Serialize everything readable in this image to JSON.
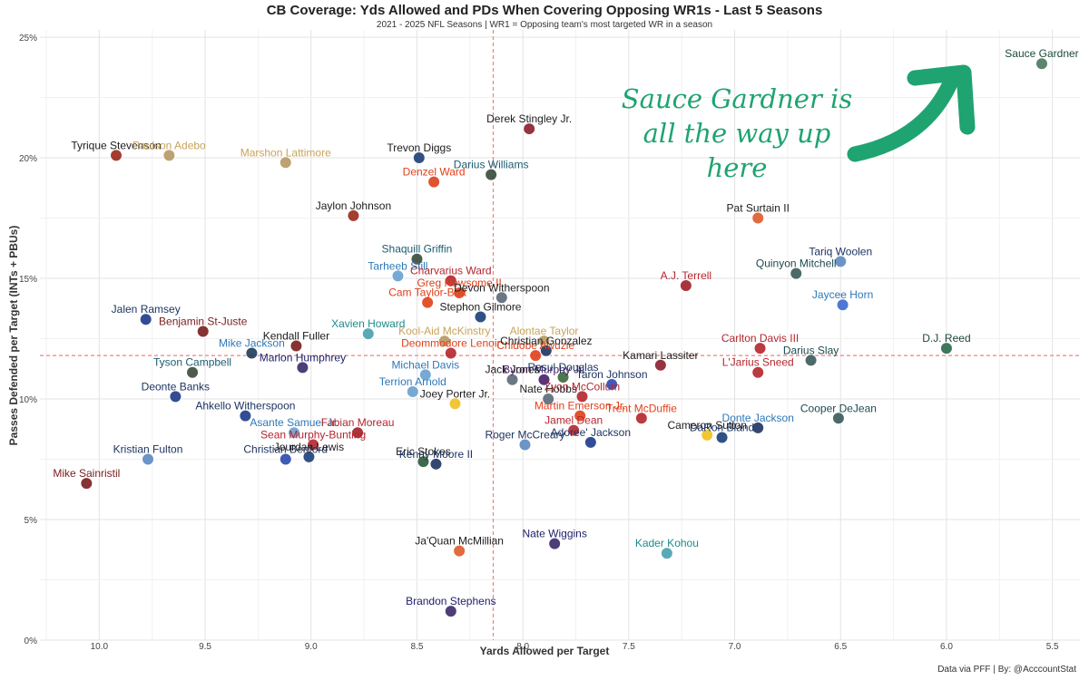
{
  "title": "CB Coverage: Yds Allowed and PDs When Covering Opposing WR1s - Last 5 Seasons",
  "subtitle": "2021 - 2025 NFL Seasons | WR1 = Opposing team's most targeted WR in a season",
  "annotation": "Sauce Gardner is all the way up here",
  "credit": "Data via PFF | By: @AcccountStat",
  "chart_data": {
    "type": "scatter",
    "title": "CB Coverage: Yds Allowed and PDs When Covering Opposing WR1s - Last 5 Seasons",
    "subtitle": "2021 - 2025 NFL Seasons | WR1 = Opposing team's most targeted WR in a season",
    "xlabel": "Yards Allowed per Target",
    "ylabel": "Passes Defended per Target (INTs + PBUs)",
    "x_reversed": true,
    "xlim": [
      10.28,
      5.37
    ],
    "ylim": [
      0,
      25.3
    ],
    "x_ticks": [
      10.0,
      9.5,
      9.0,
      8.5,
      8.0,
      7.5,
      7.0,
      6.5,
      6.0,
      5.5
    ],
    "x_tick_labels": [
      "10.0",
      "9.5",
      "9.0",
      "8.5",
      "8.0",
      "7.5",
      "7.0",
      "6.5",
      "6.0",
      "5.5"
    ],
    "y_ticks": [
      0,
      5,
      10,
      15,
      20,
      25
    ],
    "y_tick_labels": [
      "0%",
      "5%",
      "10%",
      "15%",
      "20%",
      "25%"
    ],
    "grid": true,
    "reference_lines": {
      "x": 8.14,
      "y": 11.8,
      "color": "#f08080"
    },
    "points": [
      {
        "name": "Sauce Gardner",
        "x": 5.55,
        "y": 23.9,
        "color": "#1d4a3a",
        "marker": "#4a7a5a"
      },
      {
        "name": "Tyrique Stevenson",
        "x": 9.92,
        "y": 20.1,
        "color": "#1c1c1c",
        "marker": "#9a2a1a"
      },
      {
        "name": "Paulson Adebo",
        "x": 9.67,
        "y": 20.1,
        "color": "#c9a35a",
        "marker": "#b79a62"
      },
      {
        "name": "Marshon Lattimore",
        "x": 9.12,
        "y": 19.8,
        "color": "#c9a35a",
        "marker": "#b79a62"
      },
      {
        "name": "Trevon Diggs",
        "x": 8.49,
        "y": 20.0,
        "color": "#1c1c1c",
        "marker": "#1b3f7a"
      },
      {
        "name": "Derek Stingley Jr.",
        "x": 7.97,
        "y": 21.2,
        "color": "#1c1c1c",
        "marker": "#8a1f2d"
      },
      {
        "name": "Darius Williams",
        "x": 8.15,
        "y": 19.3,
        "color": "#1d5c72",
        "marker": "#3a4a3a"
      },
      {
        "name": "Denzel Ward",
        "x": 8.42,
        "y": 19.0,
        "color": "#e0401a",
        "marker": "#e0401a"
      },
      {
        "name": "Jaylon Johnson",
        "x": 8.8,
        "y": 17.6,
        "color": "#1c1c1c",
        "marker": "#9a2a1a"
      },
      {
        "name": "Pat Surtain II",
        "x": 6.89,
        "y": 17.5,
        "color": "#1c1c1c",
        "marker": "#e05a2a"
      },
      {
        "name": "Shaquill Griffin",
        "x": 8.5,
        "y": 15.8,
        "color": "#1d5c72",
        "marker": "#3a4a3a"
      },
      {
        "name": "Tariq Woolen",
        "x": 6.5,
        "y": 15.7,
        "color": "#1d3461",
        "marker": "#5a8ac0"
      },
      {
        "name": "Tarheeb Still",
        "x": 8.59,
        "y": 15.1,
        "color": "#2e78b8",
        "marker": "#6aa0d0"
      },
      {
        "name": "Charvarius Ward",
        "x": 8.34,
        "y": 14.9,
        "color": "#b4262d",
        "marker": "#b4262d"
      },
      {
        "name": "A.J. Terrell",
        "x": 7.23,
        "y": 14.7,
        "color": "#b4262d",
        "marker": "#a01f2a"
      },
      {
        "name": "Quinyon Mitchell",
        "x": 6.71,
        "y": 15.2,
        "color": "#1d4a4f",
        "marker": "#3a5a5a"
      },
      {
        "name": "Greg Newsome II",
        "x": 8.3,
        "y": 14.4,
        "color": "#e0401a",
        "marker": "#e0401a"
      },
      {
        "name": "Cam Taylor-Britt",
        "x": 8.45,
        "y": 14.0,
        "color": "#e0401a",
        "marker": "#e0401a"
      },
      {
        "name": "Devon Witherspoon",
        "x": 8.1,
        "y": 14.2,
        "color": "#1c1c1c",
        "marker": "#5a6a7a"
      },
      {
        "name": "Jaycee Horn",
        "x": 6.49,
        "y": 13.9,
        "color": "#2e78b8",
        "marker": "#3a6ad0"
      },
      {
        "name": "Jalen Ramsey",
        "x": 9.78,
        "y": 13.3,
        "color": "#1d3461",
        "marker": "#1d3a8a"
      },
      {
        "name": "Stephon Gilmore",
        "x": 8.2,
        "y": 13.4,
        "color": "#1c1c1c",
        "marker": "#1b3f7a"
      },
      {
        "name": "Xavien Howard",
        "x": 8.73,
        "y": 12.7,
        "color": "#1d8a8a",
        "marker": "#4aa0b0"
      },
      {
        "name": "Benjamin St-Juste",
        "x": 9.51,
        "y": 12.8,
        "color": "#7a1d1d",
        "marker": "#7a1d1d"
      },
      {
        "name": "Kool-Aid McKinstry",
        "x": 8.37,
        "y": 12.4,
        "color": "#c9a35a",
        "marker": "#b79a62"
      },
      {
        "name": "Alontae Taylor",
        "x": 7.9,
        "y": 12.4,
        "color": "#c9a35a",
        "marker": "#b79a62"
      },
      {
        "name": "Chidobe Awuzie",
        "x": 7.94,
        "y": 11.8,
        "color": "#e0401a",
        "marker": "#e0401a"
      },
      {
        "name": "Christian Gonzalez",
        "x": 7.89,
        "y": 12.0,
        "color": "#1c1c1c",
        "marker": "#1d3461"
      },
      {
        "name": "Carlton Davis III",
        "x": 6.88,
        "y": 12.1,
        "color": "#b4262d",
        "marker": "#b4262d"
      },
      {
        "name": "D.J. Reed",
        "x": 6.0,
        "y": 12.1,
        "color": "#1d4a3a",
        "marker": "#2a6a4a"
      },
      {
        "name": "Kendall Fuller",
        "x": 9.07,
        "y": 12.2,
        "color": "#1c1c1c",
        "marker": "#7a1d1d"
      },
      {
        "name": "Mike Jackson",
        "x": 9.28,
        "y": 11.9,
        "color": "#2e78b8",
        "marker": "#1d3a5a"
      },
      {
        "name": "Deommodore Lenoir",
        "x": 8.34,
        "y": 11.9,
        "color": "#e0401a",
        "marker": "#b4262d"
      },
      {
        "name": "Kamari Lassiter",
        "x": 7.35,
        "y": 11.4,
        "color": "#1c1c1c",
        "marker": "#8a1f2d"
      },
      {
        "name": "Darius Slay",
        "x": 6.64,
        "y": 11.6,
        "color": "#1d4a4f",
        "marker": "#3a5a5a"
      },
      {
        "name": "Tyson Campbell",
        "x": 9.56,
        "y": 11.1,
        "color": "#1d5c72",
        "marker": "#3a4a3a"
      },
      {
        "name": "Marlon Humphrey",
        "x": 9.04,
        "y": 11.3,
        "color": "#1d1d6a",
        "marker": "#3a2a6a"
      },
      {
        "name": "Michael Davis",
        "x": 8.46,
        "y": 11.0,
        "color": "#2e78b8",
        "marker": "#6aa0d0"
      },
      {
        "name": "Byron Murphy Jr.",
        "x": 7.9,
        "y": 10.8,
        "color": "#4a1d6a",
        "marker": "#4a1d6a"
      },
      {
        "name": "Rasul Douglas",
        "x": 7.81,
        "y": 10.9,
        "color": "#1d3461",
        "marker": "#3a6a3a"
      },
      {
        "name": "Jack Jones",
        "x": 8.05,
        "y": 10.8,
        "color": "#1c1c1c",
        "marker": "#5a6a7a"
      },
      {
        "name": "L'Jarius Sneed",
        "x": 6.89,
        "y": 11.1,
        "color": "#b4262d",
        "marker": "#b4262d"
      },
      {
        "name": "Taron Johnson",
        "x": 7.58,
        "y": 10.6,
        "color": "#1d3461",
        "marker": "#2a4ab0"
      },
      {
        "name": "Deonte Banks",
        "x": 9.64,
        "y": 10.1,
        "color": "#1d3461",
        "marker": "#1d3a8a"
      },
      {
        "name": "Terrion Arnold",
        "x": 8.52,
        "y": 10.3,
        "color": "#2e78b8",
        "marker": "#6aa0d0"
      },
      {
        "name": "Nate Hobbs",
        "x": 7.88,
        "y": 10.0,
        "color": "#1c1c1c",
        "marker": "#5a6a7a"
      },
      {
        "name": "Zyon McCollum",
        "x": 7.72,
        "y": 10.1,
        "color": "#b4262d",
        "marker": "#b4262d"
      },
      {
        "name": "Joey Porter Jr.",
        "x": 8.32,
        "y": 9.8,
        "color": "#1c1c1c",
        "marker": "#f0c020"
      },
      {
        "name": "Ahkello Witherspoon",
        "x": 9.31,
        "y": 9.3,
        "color": "#1d3461",
        "marker": "#1d3a8a"
      },
      {
        "name": "Martin Emerson Jr.",
        "x": 7.73,
        "y": 9.3,
        "color": "#e0401a",
        "marker": "#e0401a"
      },
      {
        "name": "Trent McDuffie",
        "x": 7.44,
        "y": 9.2,
        "color": "#e0401a",
        "marker": "#b4262d"
      },
      {
        "name": "Asante Samuel Jr.",
        "x": 9.08,
        "y": 8.6,
        "color": "#2e78b8",
        "marker": "#6aa0d0"
      },
      {
        "name": "Fabian Moreau",
        "x": 8.78,
        "y": 8.6,
        "color": "#b4262d",
        "marker": "#a01f2a"
      },
      {
        "name": "Jamel Dean",
        "x": 7.76,
        "y": 8.7,
        "color": "#b4262d",
        "marker": "#b4262d"
      },
      {
        "name": "Cameron Sutton",
        "x": 7.13,
        "y": 8.5,
        "color": "#1c1c1c",
        "marker": "#f0c020"
      },
      {
        "name": "Donte Jackson",
        "x": 6.89,
        "y": 8.8,
        "color": "#2e78b8",
        "marker": "#1d3461"
      },
      {
        "name": "Cooper DeJean",
        "x": 6.51,
        "y": 9.2,
        "color": "#1d4a4f",
        "marker": "#3a5a5a"
      },
      {
        "name": "DaRon Bland",
        "x": 7.06,
        "y": 8.4,
        "color": "#1d3461",
        "marker": "#1b3f7a"
      },
      {
        "name": "Roger McCreary",
        "x": 7.99,
        "y": 8.1,
        "color": "#1d3461",
        "marker": "#5a8ac0"
      },
      {
        "name": "Adoree' Jackson",
        "x": 7.68,
        "y": 8.2,
        "color": "#1d3461",
        "marker": "#1d3a8a"
      },
      {
        "name": "Kristian Fulton",
        "x": 9.77,
        "y": 7.5,
        "color": "#1d3461",
        "marker": "#5a8ac0"
      },
      {
        "name": "Sean Murphy-Bunting",
        "x": 8.99,
        "y": 8.1,
        "color": "#b4262d",
        "marker": "#b4262d"
      },
      {
        "name": "Christian Benford",
        "x": 9.12,
        "y": 7.5,
        "color": "#1d3461",
        "marker": "#2a4ab0"
      },
      {
        "name": "Jourdan Lewis",
        "x": 9.01,
        "y": 7.6,
        "color": "#1c1c1c",
        "marker": "#1b3f7a"
      },
      {
        "name": "Eric Stokes",
        "x": 8.47,
        "y": 7.4,
        "color": "#1c1c1c",
        "marker": "#2a5a3a"
      },
      {
        "name": "Kenny Moore II",
        "x": 8.41,
        "y": 7.3,
        "color": "#1d3461",
        "marker": "#1d3461"
      },
      {
        "name": "Mike Sainristil",
        "x": 10.06,
        "y": 6.5,
        "color": "#7a1d1d",
        "marker": "#7a1d1d"
      },
      {
        "name": "Ja'Quan McMillian",
        "x": 8.3,
        "y": 3.7,
        "color": "#1c1c1c",
        "marker": "#e05a2a"
      },
      {
        "name": "Nate Wiggins",
        "x": 7.85,
        "y": 4.0,
        "color": "#1d1d6a",
        "marker": "#3a2a6a"
      },
      {
        "name": "Kader Kohou",
        "x": 7.32,
        "y": 3.6,
        "color": "#1d8a8a",
        "marker": "#4aa0b0"
      },
      {
        "name": "Brandon Stephens",
        "x": 8.34,
        "y": 1.2,
        "color": "#1d1d6a",
        "marker": "#3a2a6a"
      }
    ]
  }
}
